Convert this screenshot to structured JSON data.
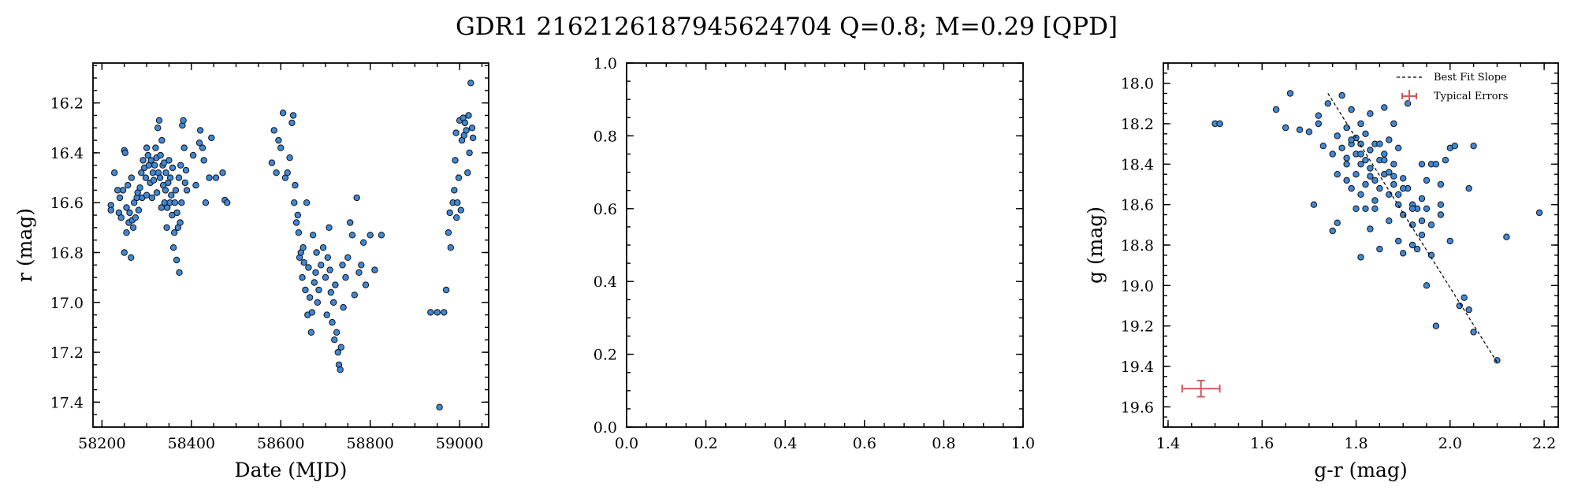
{
  "figure": {
    "title": "GDR1 2162126187945624704  Q=0.8; M=0.29 [QPD]"
  },
  "chart_data": [
    {
      "type": "scatter",
      "xlabel": "Date (MJD)",
      "ylabel": "r (mag)",
      "xlim": [
        58180,
        59065
      ],
      "ylim": [
        17.5,
        16.04
      ],
      "y_inverted": true,
      "xticks": [
        58200,
        58400,
        58600,
        58800,
        59000
      ],
      "yticks": [
        16.2,
        16.4,
        16.6,
        16.8,
        17.0,
        17.2,
        17.4
      ],
      "xtick_labels": [
        "58200",
        "58400",
        "58600",
        "58800",
        "59000"
      ],
      "ytick_labels": [
        "16.2",
        "16.4",
        "16.6",
        "16.8",
        "17.0",
        "17.2",
        "17.4"
      ],
      "marker_color": "#3f88d6",
      "points": [
        [
          58220,
          16.61
        ],
        [
          58220,
          16.63
        ],
        [
          58228,
          16.48
        ],
        [
          58235,
          16.55
        ],
        [
          58238,
          16.64
        ],
        [
          58240,
          16.58
        ],
        [
          58243,
          16.66
        ],
        [
          58247,
          16.55
        ],
        [
          58250,
          16.39
        ],
        [
          58250,
          16.8
        ],
        [
          58252,
          16.4
        ],
        [
          58255,
          16.62
        ],
        [
          58255,
          16.72
        ],
        [
          58258,
          16.53
        ],
        [
          58260,
          16.68
        ],
        [
          58262,
          16.64
        ],
        [
          58265,
          16.82
        ],
        [
          58266,
          16.5
        ],
        [
          58268,
          16.67
        ],
        [
          58270,
          16.7
        ],
        [
          58272,
          16.6
        ],
        [
          58275,
          16.66
        ],
        [
          58278,
          16.58
        ],
        [
          58280,
          16.56
        ],
        [
          58282,
          16.63
        ],
        [
          58285,
          16.54
        ],
        [
          58288,
          16.48
        ],
        [
          58290,
          16.58
        ],
        [
          58292,
          16.43
        ],
        [
          58295,
          16.46
        ],
        [
          58298,
          16.5
        ],
        [
          58300,
          16.38
        ],
        [
          58300,
          16.57
        ],
        [
          58303,
          16.41
        ],
        [
          58305,
          16.45
        ],
        [
          58308,
          16.52
        ],
        [
          58310,
          16.43
        ],
        [
          58312,
          16.58
        ],
        [
          58314,
          16.48
        ],
        [
          58316,
          16.51
        ],
        [
          58318,
          16.45
        ],
        [
          58320,
          16.38
        ],
        [
          58322,
          16.42
        ],
        [
          58323,
          16.56
        ],
        [
          58325,
          16.3
        ],
        [
          58326,
          16.48
        ],
        [
          58328,
          16.27
        ],
        [
          58330,
          16.5
        ],
        [
          58331,
          16.41
        ],
        [
          58333,
          16.62
        ],
        [
          58334,
          16.35
        ],
        [
          58336,
          16.45
        ],
        [
          58337,
          16.53
        ],
        [
          58339,
          16.44
        ],
        [
          58340,
          16.6
        ],
        [
          58342,
          16.55
        ],
        [
          58343,
          16.48
        ],
        [
          58345,
          16.7
        ],
        [
          58346,
          16.62
        ],
        [
          58348,
          16.52
        ],
        [
          58350,
          16.43
        ],
        [
          58352,
          16.6
        ],
        [
          58353,
          16.5
        ],
        [
          58355,
          16.57
        ],
        [
          58357,
          16.65
        ],
        [
          58358,
          16.46
        ],
        [
          58360,
          16.78
        ],
        [
          58362,
          16.72
        ],
        [
          58363,
          16.6
        ],
        [
          58365,
          16.55
        ],
        [
          58367,
          16.83
        ],
        [
          58368,
          16.64
        ],
        [
          58370,
          16.7
        ],
        [
          58372,
          16.5
        ],
        [
          58373,
          16.88
        ],
        [
          58375,
          16.68
        ],
        [
          58376,
          16.45
        ],
        [
          58378,
          16.6
        ],
        [
          58380,
          16.29
        ],
        [
          58382,
          16.27
        ],
        [
          58384,
          16.38
        ],
        [
          58386,
          16.52
        ],
        [
          58388,
          16.47
        ],
        [
          58390,
          16.55
        ],
        [
          58404,
          16.41
        ],
        [
          58410,
          16.53
        ],
        [
          58418,
          16.36
        ],
        [
          58420,
          16.31
        ],
        [
          58425,
          16.38
        ],
        [
          58428,
          16.43
        ],
        [
          58432,
          16.6
        ],
        [
          58440,
          16.5
        ],
        [
          58445,
          16.34
        ],
        [
          58455,
          16.5
        ],
        [
          58470,
          16.48
        ],
        [
          58475,
          16.59
        ],
        [
          58480,
          16.6
        ],
        [
          58580,
          16.44
        ],
        [
          58585,
          16.31
        ],
        [
          58590,
          16.48
        ],
        [
          58595,
          16.35
        ],
        [
          58600,
          16.38
        ],
        [
          58605,
          16.24
        ],
        [
          58610,
          16.5
        ],
        [
          58615,
          16.48
        ],
        [
          58620,
          16.42
        ],
        [
          58625,
          16.28
        ],
        [
          58628,
          16.25
        ],
        [
          58630,
          16.6
        ],
        [
          58632,
          16.53
        ],
        [
          58635,
          16.68
        ],
        [
          58638,
          16.65
        ],
        [
          58640,
          16.72
        ],
        [
          58642,
          16.82
        ],
        [
          58645,
          16.8
        ],
        [
          58648,
          16.9
        ],
        [
          58650,
          16.78
        ],
        [
          58652,
          16.84
        ],
        [
          58655,
          16.95
        ],
        [
          58658,
          16.6
        ],
        [
          58660,
          17.05
        ],
        [
          58662,
          16.86
        ],
        [
          58665,
          16.98
        ],
        [
          58668,
          17.12
        ],
        [
          58670,
          17.04
        ],
        [
          58672,
          16.73
        ],
        [
          58675,
          16.92
        ],
        [
          58678,
          16.88
        ],
        [
          58680,
          16.8
        ],
        [
          58682,
          17.0
        ],
        [
          58685,
          16.95
        ],
        [
          58690,
          16.85
        ],
        [
          58695,
          16.78
        ],
        [
          58700,
          16.9
        ],
        [
          58703,
          17.05
        ],
        [
          58705,
          16.82
        ],
        [
          58708,
          16.7
        ],
        [
          58710,
          16.87
        ],
        [
          58712,
          16.96
        ],
        [
          58715,
          17.08
        ],
        [
          58718,
          17.0
        ],
        [
          58720,
          17.15
        ],
        [
          58722,
          16.93
        ],
        [
          58725,
          17.12
        ],
        [
          58728,
          17.2
        ],
        [
          58730,
          17.25
        ],
        [
          58733,
          17.27
        ],
        [
          58735,
          17.18
        ],
        [
          58738,
          16.85
        ],
        [
          58740,
          17.02
        ],
        [
          58745,
          16.9
        ],
        [
          58750,
          16.82
        ],
        [
          58755,
          16.68
        ],
        [
          58760,
          16.73
        ],
        [
          58765,
          16.97
        ],
        [
          58770,
          16.58
        ],
        [
          58775,
          16.88
        ],
        [
          58780,
          16.85
        ],
        [
          58785,
          16.76
        ],
        [
          58790,
          16.93
        ],
        [
          58800,
          16.73
        ],
        [
          58810,
          16.87
        ],
        [
          58825,
          16.73
        ],
        [
          58950,
          17.04
        ],
        [
          58955,
          17.42
        ],
        [
          58965,
          17.04
        ],
        [
          58970,
          16.95
        ],
        [
          58975,
          16.72
        ],
        [
          58978,
          16.64
        ],
        [
          58980,
          16.78
        ],
        [
          58985,
          16.6
        ],
        [
          58988,
          16.55
        ],
        [
          58990,
          16.43
        ],
        [
          58992,
          16.32
        ],
        [
          58995,
          16.6
        ],
        [
          59000,
          16.27
        ],
        [
          59005,
          16.35
        ],
        [
          59008,
          16.26
        ],
        [
          59010,
          16.33
        ],
        [
          59012,
          16.28
        ],
        [
          59015,
          16.31
        ],
        [
          59018,
          16.48
        ],
        [
          59020,
          16.25
        ],
        [
          59022,
          16.4
        ],
        [
          59025,
          16.12
        ],
        [
          59030,
          16.34
        ],
        [
          58998,
          16.5
        ],
        [
          59003,
          16.63
        ],
        [
          58993,
          16.66
        ],
        [
          58935,
          17.04
        ],
        [
          59028,
          16.3
        ]
      ]
    },
    {
      "type": "scatter",
      "xlabel": "",
      "ylabel": "",
      "xlim": [
        0,
        1
      ],
      "ylim": [
        0,
        1
      ],
      "xticks": [
        0.0,
        0.2,
        0.4,
        0.6,
        0.8,
        1.0
      ],
      "yticks": [
        0.0,
        0.2,
        0.4,
        0.6,
        0.8,
        1.0
      ],
      "xtick_labels": [
        "0.0",
        "0.2",
        "0.4",
        "0.6",
        "0.8",
        "1.0"
      ],
      "ytick_labels": [
        "0.0",
        "0.2",
        "0.4",
        "0.6",
        "0.8",
        "1.0"
      ],
      "points": []
    },
    {
      "type": "scatter",
      "xlabel": "g-r (mag)",
      "ylabel": "g (mag)",
      "xlim": [
        1.39,
        2.23
      ],
      "ylim": [
        19.7,
        17.9
      ],
      "y_inverted": true,
      "xticks": [
        1.4,
        1.6,
        1.8,
        2.0,
        2.2
      ],
      "yticks": [
        18.0,
        18.2,
        18.4,
        18.6,
        18.8,
        19.0,
        19.2,
        19.4,
        19.6
      ],
      "xtick_labels": [
        "1.4",
        "1.6",
        "1.8",
        "2.0",
        "2.2"
      ],
      "ytick_labels": [
        "18.0",
        "18.2",
        "18.4",
        "18.6",
        "18.8",
        "19.0",
        "19.2",
        "19.4",
        "19.6"
      ],
      "marker_color": "#3f88d6",
      "points": [
        [
          1.5,
          18.2
        ],
        [
          1.51,
          18.2
        ],
        [
          1.63,
          18.13
        ],
        [
          1.65,
          18.22
        ],
        [
          1.66,
          18.05
        ],
        [
          1.68,
          18.23
        ],
        [
          1.7,
          18.24
        ],
        [
          1.71,
          18.6
        ],
        [
          1.72,
          18.16
        ],
        [
          1.72,
          18.2
        ],
        [
          1.73,
          18.31
        ],
        [
          1.74,
          18.1
        ],
        [
          1.75,
          18.35
        ],
        [
          1.75,
          18.73
        ],
        [
          1.76,
          18.26
        ],
        [
          1.76,
          18.69
        ],
        [
          1.77,
          18.32
        ],
        [
          1.77,
          18.06
        ],
        [
          1.78,
          18.22
        ],
        [
          1.78,
          18.4
        ],
        [
          1.78,
          18.48
        ],
        [
          1.79,
          18.3
        ],
        [
          1.79,
          18.13
        ],
        [
          1.79,
          18.52
        ],
        [
          1.8,
          18.27
        ],
        [
          1.8,
          18.35
        ],
        [
          1.8,
          18.45
        ],
        [
          1.8,
          18.62
        ],
        [
          1.81,
          18.2
        ],
        [
          1.81,
          18.4
        ],
        [
          1.81,
          18.3
        ],
        [
          1.81,
          18.55
        ],
        [
          1.81,
          18.86
        ],
        [
          1.82,
          18.25
        ],
        [
          1.82,
          18.38
        ],
        [
          1.82,
          18.5
        ],
        [
          1.82,
          18.62
        ],
        [
          1.83,
          18.33
        ],
        [
          1.83,
          18.42
        ],
        [
          1.83,
          18.72
        ],
        [
          1.83,
          18.15
        ],
        [
          1.84,
          18.3
        ],
        [
          1.84,
          18.48
        ],
        [
          1.84,
          18.62
        ],
        [
          1.85,
          18.38
        ],
        [
          1.85,
          18.52
        ],
        [
          1.85,
          18.82
        ],
        [
          1.86,
          18.35
        ],
        [
          1.86,
          18.45
        ],
        [
          1.86,
          18.12
        ],
        [
          1.87,
          18.28
        ],
        [
          1.87,
          18.55
        ],
        [
          1.87,
          18.68
        ],
        [
          1.88,
          18.4
        ],
        [
          1.88,
          18.2
        ],
        [
          1.88,
          18.5
        ],
        [
          1.89,
          18.6
        ],
        [
          1.89,
          18.78
        ],
        [
          1.89,
          18.32
        ],
        [
          1.9,
          18.47
        ],
        [
          1.9,
          18.65
        ],
        [
          1.9,
          18.84
        ],
        [
          1.91,
          18.1
        ],
        [
          1.91,
          18.52
        ],
        [
          1.92,
          18.6
        ],
        [
          1.92,
          18.7
        ],
        [
          1.92,
          18.8
        ],
        [
          1.93,
          18.82
        ],
        [
          1.93,
          18.62
        ],
        [
          1.94,
          18.4
        ],
        [
          1.94,
          18.75
        ],
        [
          1.94,
          18.57
        ],
        [
          1.95,
          18.48
        ],
        [
          1.95,
          19.0
        ],
        [
          1.95,
          18.62
        ],
        [
          1.96,
          18.4
        ],
        [
          1.96,
          18.7
        ],
        [
          1.96,
          18.85
        ],
        [
          1.97,
          19.2
        ],
        [
          1.97,
          18.4
        ],
        [
          1.98,
          18.5
        ],
        [
          1.98,
          18.6
        ],
        [
          1.98,
          18.65
        ],
        [
          1.99,
          18.38
        ],
        [
          2.0,
          18.32
        ],
        [
          2.0,
          18.78
        ],
        [
          2.01,
          18.31
        ],
        [
          2.02,
          19.1
        ],
        [
          2.03,
          19.06
        ],
        [
          2.04,
          19.12
        ],
        [
          2.04,
          18.52
        ],
        [
          2.05,
          18.31
        ],
        [
          2.05,
          19.23
        ],
        [
          2.1,
          19.37
        ],
        [
          2.12,
          18.76
        ],
        [
          2.19,
          18.64
        ],
        [
          1.84,
          18.58
        ],
        [
          1.86,
          18.38
        ],
        [
          1.88,
          18.46
        ],
        [
          1.78,
          18.37
        ],
        [
          1.76,
          18.45
        ],
        [
          1.92,
          18.62
        ],
        [
          1.94,
          18.68
        ],
        [
          1.85,
          18.3
        ],
        [
          1.83,
          18.46
        ],
        [
          1.81,
          18.35
        ],
        [
          1.9,
          18.52
        ],
        [
          1.87,
          18.44
        ],
        [
          1.89,
          18.55
        ],
        [
          1.79,
          18.28
        ]
      ],
      "best_fit_line": [
        [
          1.74,
          18.05
        ],
        [
          2.1,
          19.38
        ]
      ],
      "typical_error": {
        "x": 1.47,
        "y": 19.51,
        "xerr": 0.04,
        "yerr": 0.04,
        "color": "#d0585b"
      },
      "legend": {
        "placement": "top-right",
        "entries": [
          "Best Fit Slope",
          "Typical Errors"
        ]
      }
    }
  ]
}
